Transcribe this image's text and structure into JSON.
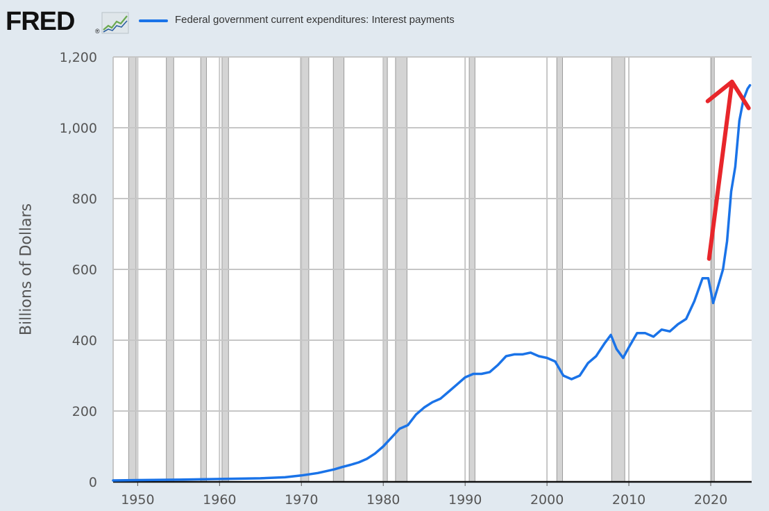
{
  "brand": {
    "logo_text": "FRED",
    "reg_mark": "®"
  },
  "colors": {
    "background": "#e1e9f0",
    "plot_background": "#ffffff",
    "series": "#1a73e8",
    "annotation_arrow": "#e8262b",
    "recession": "#d4d4d4",
    "grid": "#c6c6c6"
  },
  "icons": [
    "fred-sparkline-icon"
  ],
  "chart_data": {
    "type": "line",
    "title": "",
    "xlabel": "",
    "ylabel": "Billions of Dollars",
    "ylim": [
      0,
      1200
    ],
    "xlim": [
      1947,
      2025
    ],
    "grid": true,
    "legend_placement": "top",
    "x_ticks": [
      1950,
      1960,
      1970,
      1980,
      1990,
      2000,
      2010,
      2020
    ],
    "y_ticks": [
      {
        "value": 0,
        "label": "0"
      },
      {
        "value": 200,
        "label": "200"
      },
      {
        "value": 400,
        "label": "400"
      },
      {
        "value": 600,
        "label": "600"
      },
      {
        "value": 800,
        "label": "800"
      },
      {
        "value": 1000,
        "label": "1,000"
      },
      {
        "value": 1200,
        "label": "1,200"
      }
    ],
    "recessions": [
      [
        1948.9,
        1949.8
      ],
      [
        1953.5,
        1954.4
      ],
      [
        1957.7,
        1958.4
      ],
      [
        1960.3,
        1961.1
      ],
      [
        1969.9,
        1970.9
      ],
      [
        1973.9,
        1975.2
      ],
      [
        1980.0,
        1980.5
      ],
      [
        1981.5,
        1982.9
      ],
      [
        1990.5,
        1991.2
      ],
      [
        2001.2,
        2001.9
      ],
      [
        2007.9,
        2009.5
      ],
      [
        2020.1,
        2020.4
      ]
    ],
    "series": [
      {
        "name": "Federal government current expenditures: Interest payments",
        "x": [
          1947,
          1950,
          1955,
          1960,
          1965,
          1968,
          1970,
          1972,
          1974,
          1975,
          1976,
          1977,
          1978,
          1979,
          1980,
          1981,
          1982,
          1983,
          1984,
          1985,
          1986,
          1987,
          1988,
          1989,
          1990,
          1991,
          1992,
          1993,
          1994,
          1995,
          1996,
          1997,
          1998,
          1999,
          2000,
          2001,
          2002,
          2003,
          2004,
          2005,
          2006,
          2007,
          2007.8,
          2008.5,
          2009.3,
          2010,
          2011,
          2012,
          2013,
          2014,
          2015,
          2016,
          2017,
          2018,
          2019,
          2019.7,
          2020.3,
          2020.8,
          2021.5,
          2022,
          2022.5,
          2023,
          2023.5,
          2024,
          2024.5,
          2024.8
        ],
        "values": [
          4,
          5,
          6,
          8,
          10,
          13,
          18,
          25,
          35,
          42,
          48,
          55,
          65,
          80,
          100,
          125,
          150,
          160,
          190,
          210,
          225,
          235,
          255,
          275,
          295,
          305,
          305,
          310,
          330,
          355,
          360,
          360,
          365,
          355,
          350,
          340,
          300,
          290,
          300,
          335,
          355,
          390,
          415,
          375,
          350,
          380,
          420,
          420,
          410,
          430,
          425,
          445,
          460,
          510,
          575,
          575,
          505,
          545,
          600,
          680,
          820,
          890,
          1020,
          1080,
          1110,
          1120
        ]
      }
    ],
    "annotations": [
      {
        "type": "arrow",
        "color": "red",
        "from": [
          2019.8,
          630
        ],
        "to": [
          2022.6,
          1130
        ]
      }
    ]
  }
}
